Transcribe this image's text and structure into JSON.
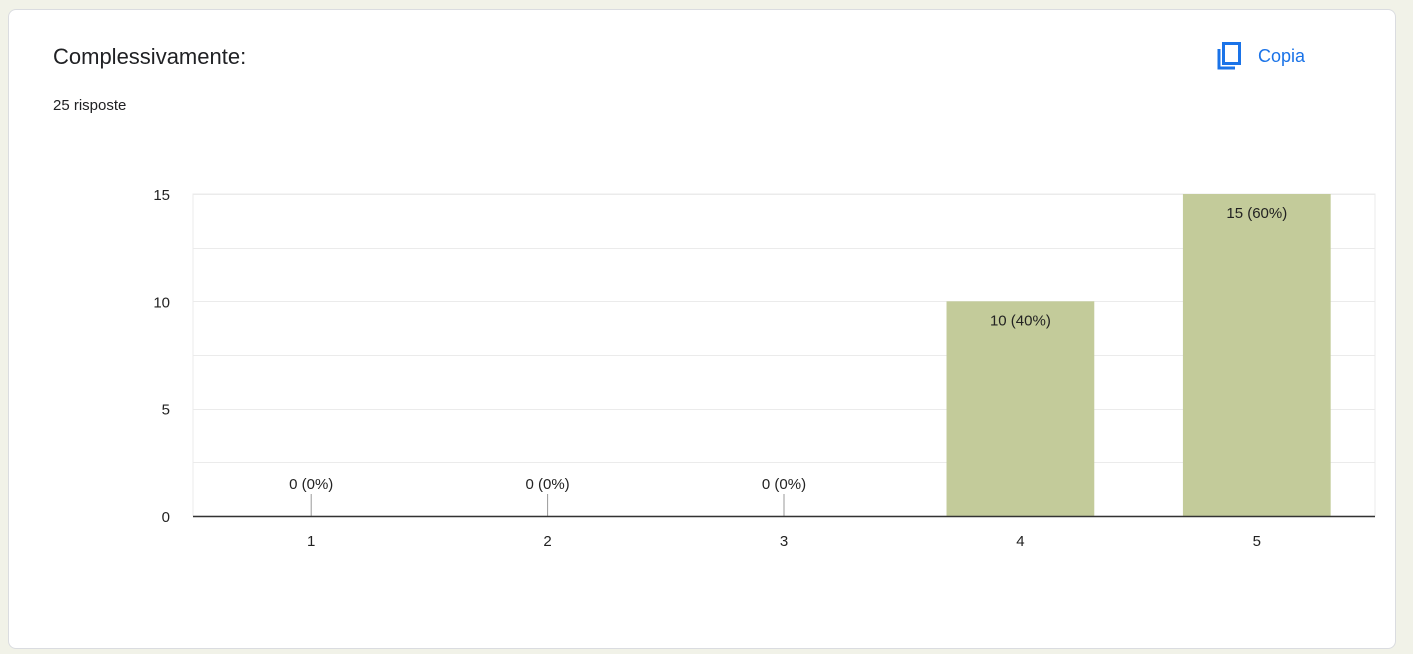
{
  "card": {
    "title": "Complessivamente:",
    "responses": "25 risposte",
    "copy_label": "Copia",
    "copy_icon": "copy-icon"
  },
  "colors": {
    "bar": "#c3cb9a",
    "accent": "#1a73e8",
    "gridline": "#ebebeb",
    "axis": "#333333"
  },
  "chart_data": {
    "type": "bar",
    "categories": [
      "1",
      "2",
      "3",
      "4",
      "5"
    ],
    "values": [
      0,
      0,
      0,
      10,
      15
    ],
    "data_labels": [
      "0 (0%)",
      "0 (0%)",
      "0 (0%)",
      "10 (40%)",
      "15 (60%)"
    ],
    "y_ticks": [
      0,
      5,
      10,
      15
    ],
    "ylim": [
      0,
      15
    ],
    "grid": true,
    "minor_grid_step": 2.5
  }
}
